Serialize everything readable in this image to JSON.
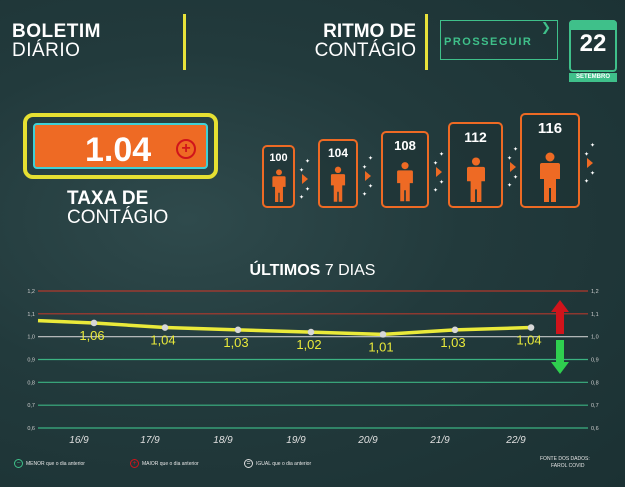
{
  "header": {
    "title_line1": "BOLETIM",
    "title_line2": "DIÁRIO",
    "ritmo_line1": "RITMO DE",
    "ritmo_line2": "CONTÁGIO",
    "prosseguir_title": "PROSSEGUIR",
    "calendar_day": "22",
    "calendar_month": "SETEMBRO",
    "accent": "#e6e032",
    "green": "#3fc08a",
    "orange": "#ee6a24"
  },
  "rate": {
    "value": "1.04",
    "trend_icon": "plus-circle-icon",
    "label_line1": "TAXA DE",
    "label_line2": "CONTÁGIO"
  },
  "contagion_chain": [
    "100",
    "104",
    "108",
    "112",
    "116"
  ],
  "chart_title_bold": "ÚLTIMOS",
  "chart_title_rest": " 7 DIAS",
  "chart_data": {
    "type": "line",
    "x": [
      "16/9",
      "17/9",
      "18/9",
      "19/9",
      "20/9",
      "21/9",
      "22/9"
    ],
    "values": [
      1.06,
      1.04,
      1.03,
      1.02,
      1.01,
      1.03,
      1.04
    ],
    "labels": [
      "1,06",
      "1,04",
      "1,03",
      "1,02",
      "1,01",
      "1,03",
      "1,04"
    ],
    "ylim": [
      0.6,
      1.2
    ],
    "yticks": [
      "1,2",
      "1,1",
      "1,0",
      "0,9",
      "0,8",
      "0,7",
      "0,6"
    ],
    "start_value": 1.07,
    "line_color": "#eaea3a",
    "grid": true
  },
  "legend": {
    "menor": "MENOR que o dia anterior",
    "maior": "MAIOR que o dia anterior",
    "igual": "IGUAL que o dia anterior"
  },
  "fonte_line1": "FONTE DOS DADOS:",
  "fonte_line2": "FAROL COVID"
}
